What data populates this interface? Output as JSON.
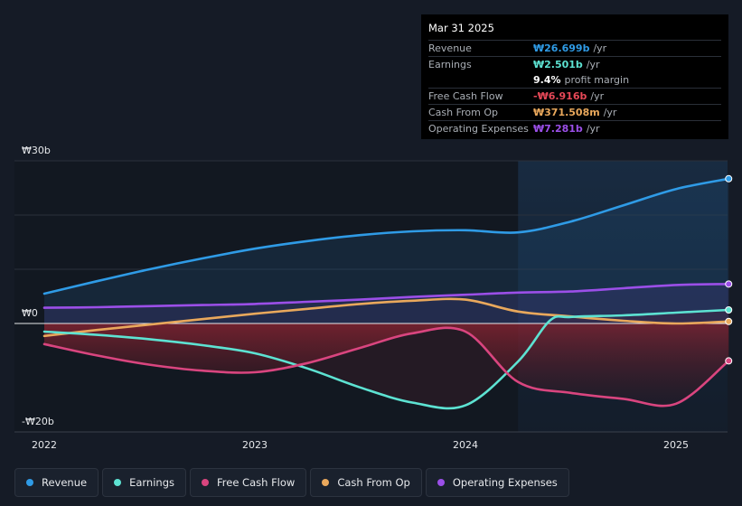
{
  "tooltip": {
    "date": "Mar 31 2025",
    "rows": [
      {
        "label": "Revenue",
        "value": "₩26.699b",
        "unit": "/yr",
        "color": "#2f9be6"
      },
      {
        "label": "Earnings",
        "value": "₩2.501b",
        "unit": "/yr",
        "color": "#5de2d2"
      },
      {
        "label": "",
        "value": "9.4%",
        "unit": "profit margin",
        "color": "#ffffff"
      },
      {
        "label": "Free Cash Flow",
        "value": "-₩6.916b",
        "unit": "/yr",
        "color": "#e64857"
      },
      {
        "label": "Cash From Op",
        "value": "₩371.508m",
        "unit": "/yr",
        "color": "#e9a85c"
      },
      {
        "label": "Operating Expenses",
        "value": "₩7.281b",
        "unit": "/yr",
        "color": "#9b4fe8"
      }
    ]
  },
  "legend": [
    {
      "label": "Revenue",
      "color": "#2f9be6"
    },
    {
      "label": "Earnings",
      "color": "#5de2d2"
    },
    {
      "label": "Free Cash Flow",
      "color": "#d9457f"
    },
    {
      "label": "Cash From Op",
      "color": "#e9a85c"
    },
    {
      "label": "Operating Expenses",
      "color": "#9b4fe8"
    }
  ],
  "chart_data": {
    "type": "line",
    "currency": "₩",
    "ylim": [
      -20,
      30
    ],
    "y_tick_labels": [
      {
        "value": 30,
        "label": "₩30b"
      },
      {
        "value": 0,
        "label": "₩0"
      },
      {
        "value": -20,
        "label": "-₩20b"
      }
    ],
    "x_tick_labels": [
      {
        "value": 2022.0,
        "label": "2022"
      },
      {
        "value": 2023.0,
        "label": "2023"
      },
      {
        "value": 2024.0,
        "label": "2024"
      },
      {
        "value": 2025.0,
        "label": "2025"
      }
    ],
    "xlim": [
      2021.85,
      2025.25
    ],
    "highlight_start": 2024.25,
    "series": [
      {
        "name": "Revenue",
        "color": "#2f9be6",
        "points": [
          [
            2022.0,
            5.5
          ],
          [
            2022.25,
            7.8
          ],
          [
            2022.5,
            10.0
          ],
          [
            2022.75,
            12.0
          ],
          [
            2023.0,
            13.8
          ],
          [
            2023.25,
            15.2
          ],
          [
            2023.5,
            16.3
          ],
          [
            2023.75,
            17.0
          ],
          [
            2024.0,
            17.2
          ],
          [
            2024.25,
            16.8
          ],
          [
            2024.5,
            18.8
          ],
          [
            2024.75,
            21.8
          ],
          [
            2025.0,
            24.8
          ],
          [
            2025.25,
            26.7
          ]
        ]
      },
      {
        "name": "Operating Expenses",
        "color": "#9b4fe8",
        "points": [
          [
            2022.0,
            2.9
          ],
          [
            2022.25,
            3.0
          ],
          [
            2022.5,
            3.2
          ],
          [
            2022.75,
            3.4
          ],
          [
            2023.0,
            3.6
          ],
          [
            2023.25,
            4.0
          ],
          [
            2023.5,
            4.4
          ],
          [
            2023.75,
            4.9
          ],
          [
            2024.0,
            5.3
          ],
          [
            2024.25,
            5.7
          ],
          [
            2024.5,
            5.9
          ],
          [
            2024.75,
            6.5
          ],
          [
            2025.0,
            7.1
          ],
          [
            2025.25,
            7.28
          ]
        ]
      },
      {
        "name": "Cash From Op",
        "color": "#e9a85c",
        "points": [
          [
            2022.0,
            -2.3
          ],
          [
            2022.25,
            -1.2
          ],
          [
            2022.5,
            -0.2
          ],
          [
            2022.75,
            0.8
          ],
          [
            2023.0,
            1.8
          ],
          [
            2023.25,
            2.7
          ],
          [
            2023.5,
            3.6
          ],
          [
            2023.75,
            4.2
          ],
          [
            2024.0,
            4.4
          ],
          [
            2024.25,
            2.2
          ],
          [
            2024.5,
            1.3
          ],
          [
            2024.75,
            0.5
          ],
          [
            2025.0,
            0.0
          ],
          [
            2025.25,
            0.37
          ]
        ]
      },
      {
        "name": "Earnings",
        "color": "#5de2d2",
        "points": [
          [
            2022.0,
            -1.5
          ],
          [
            2022.25,
            -2.1
          ],
          [
            2022.5,
            -2.9
          ],
          [
            2022.75,
            -4.0
          ],
          [
            2023.0,
            -5.5
          ],
          [
            2023.25,
            -8.3
          ],
          [
            2023.5,
            -11.8
          ],
          [
            2023.75,
            -14.6
          ],
          [
            2024.0,
            -15.1
          ],
          [
            2024.25,
            -7.0
          ],
          [
            2024.4,
            0.5
          ],
          [
            2024.5,
            1.2
          ],
          [
            2024.75,
            1.5
          ],
          [
            2025.0,
            2.0
          ],
          [
            2025.25,
            2.5
          ]
        ]
      },
      {
        "name": "Free Cash Flow",
        "color": "#d9457f",
        "points": [
          [
            2022.0,
            -3.8
          ],
          [
            2022.25,
            -5.9
          ],
          [
            2022.5,
            -7.6
          ],
          [
            2022.75,
            -8.7
          ],
          [
            2023.0,
            -9.0
          ],
          [
            2023.25,
            -7.3
          ],
          [
            2023.5,
            -4.5
          ],
          [
            2023.75,
            -1.8
          ],
          [
            2024.0,
            -1.5
          ],
          [
            2024.25,
            -10.8
          ],
          [
            2024.5,
            -12.8
          ],
          [
            2024.75,
            -13.9
          ],
          [
            2025.0,
            -14.8
          ],
          [
            2025.25,
            -6.9
          ]
        ]
      }
    ]
  }
}
